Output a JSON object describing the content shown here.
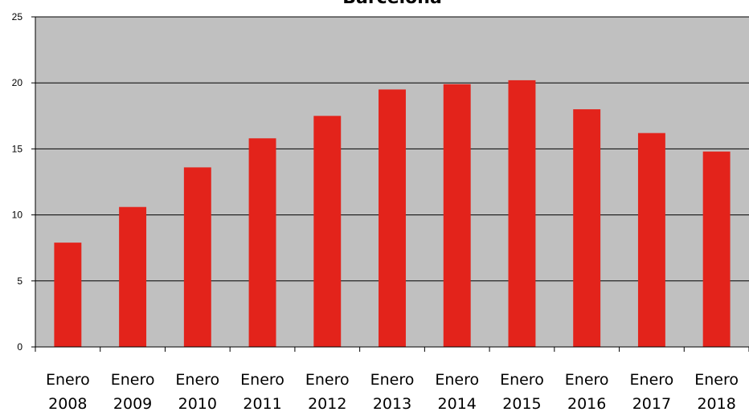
{
  "chart_data": {
    "type": "bar",
    "title": "Barcelona",
    "xlabel": "",
    "ylabel": "",
    "categories": [
      [
        "Enero",
        "2008"
      ],
      [
        "Enero",
        "2009"
      ],
      [
        "Enero",
        "2010"
      ],
      [
        "Enero",
        "2011"
      ],
      [
        "Enero",
        "2012"
      ],
      [
        "Enero",
        "2013"
      ],
      [
        "Enero",
        "2014"
      ],
      [
        "Enero",
        "2015"
      ],
      [
        "Enero",
        "2016"
      ],
      [
        "Enero",
        "2017"
      ],
      [
        "Enero",
        "2018"
      ]
    ],
    "values": [
      7.9,
      10.6,
      13.6,
      15.8,
      17.5,
      19.5,
      19.9,
      20.2,
      18.0,
      16.2,
      14.8
    ],
    "ylim": [
      0,
      25
    ],
    "yticks": [
      0,
      5,
      10,
      15,
      20,
      25
    ],
    "grid": true,
    "legend": "none",
    "colors": {
      "bar": "#e3231b",
      "plot_background": "#c0c0c0",
      "gridline": "#000000",
      "axis": "#000000"
    }
  }
}
